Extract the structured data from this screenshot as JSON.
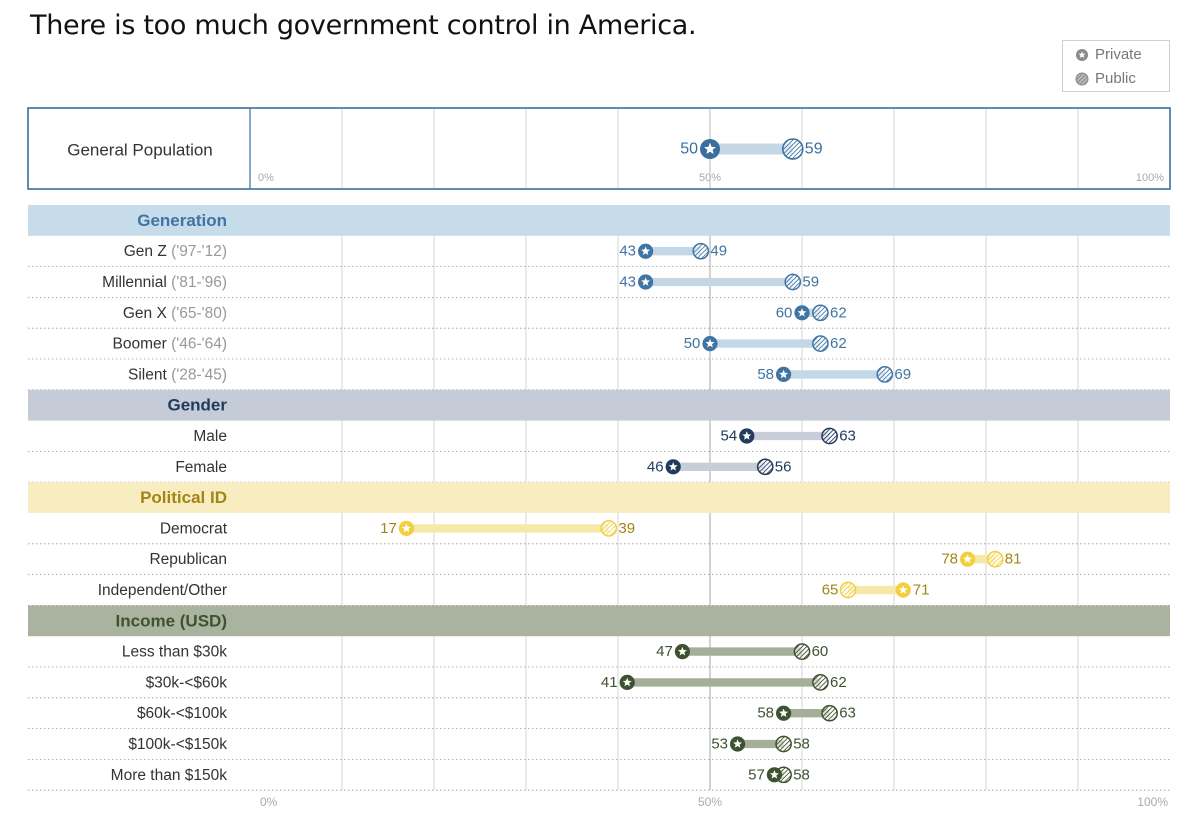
{
  "title": "There is too much government control in America.",
  "legend": {
    "private_label": "Private",
    "public_label": "Public"
  },
  "colors": {
    "gen_pop": "#3a6e9e",
    "generation": "#3f74a3",
    "generation_band": "#c7dcea",
    "generation_bar": "#c4d7e6",
    "gender": "#223b5c",
    "gender_band": "#c6ccd7",
    "gender_bar": "#c8cdd8",
    "political": "#f2cf3f",
    "political_band": "#f8edc0",
    "political_label": "#a38416",
    "political_bar": "#f6e9a8",
    "income": "#3e5230",
    "income_band": "#a9b39f",
    "income_bar": "#a4ae99",
    "grid": "#d6d6d6",
    "midline": "#b9b9b9"
  },
  "chart_data": {
    "type": "dumbbell",
    "title": "There is too much government control in America.",
    "xlim": [
      0,
      100
    ],
    "x_tick_labels": [
      "0%",
      "50%",
      "100%"
    ],
    "series": [
      {
        "name": "Private"
      },
      {
        "name": "Public"
      }
    ],
    "top": {
      "label": "General Population",
      "private": 50,
      "public": 59
    },
    "groups": [
      {
        "name": "Generation",
        "theme": "generation",
        "rows": [
          {
            "label": "Gen Z",
            "sub": "('97-'12)",
            "private": 43,
            "public": 49
          },
          {
            "label": "Millennial",
            "sub": "('81-'96)",
            "private": 43,
            "public": 59
          },
          {
            "label": "Gen X",
            "sub": "('65-'80)",
            "private": 60,
            "public": 62
          },
          {
            "label": "Boomer",
            "sub": "('46-'64)",
            "private": 50,
            "public": 62
          },
          {
            "label": "Silent",
            "sub": "('28-'45)",
            "private": 58,
            "public": 69
          }
        ]
      },
      {
        "name": "Gender",
        "theme": "gender",
        "rows": [
          {
            "label": "Male",
            "sub": "",
            "private": 54,
            "public": 63
          },
          {
            "label": "Female",
            "sub": "",
            "private": 46,
            "public": 56
          }
        ]
      },
      {
        "name": "Political ID",
        "theme": "political",
        "rows": [
          {
            "label": "Democrat",
            "sub": "",
            "private": 17,
            "public": 39
          },
          {
            "label": "Republican",
            "sub": "",
            "private": 78,
            "public": 81
          },
          {
            "label": "Independent/Other",
            "sub": "",
            "private": 71,
            "public": 65
          }
        ]
      },
      {
        "name": "Income (USD)",
        "theme": "income",
        "rows": [
          {
            "label": "Less than $30k",
            "sub": "",
            "private": 47,
            "public": 60
          },
          {
            "label": "$30k-<$60k",
            "sub": "",
            "private": 41,
            "public": 62
          },
          {
            "label": "$60k-<$100k",
            "sub": "",
            "private": 58,
            "public": 63
          },
          {
            "label": "$100k-<$150k",
            "sub": "",
            "private": 53,
            "public": 58
          },
          {
            "label": "More than $150k",
            "sub": "",
            "private": 57,
            "public": 58
          }
        ]
      }
    ]
  }
}
